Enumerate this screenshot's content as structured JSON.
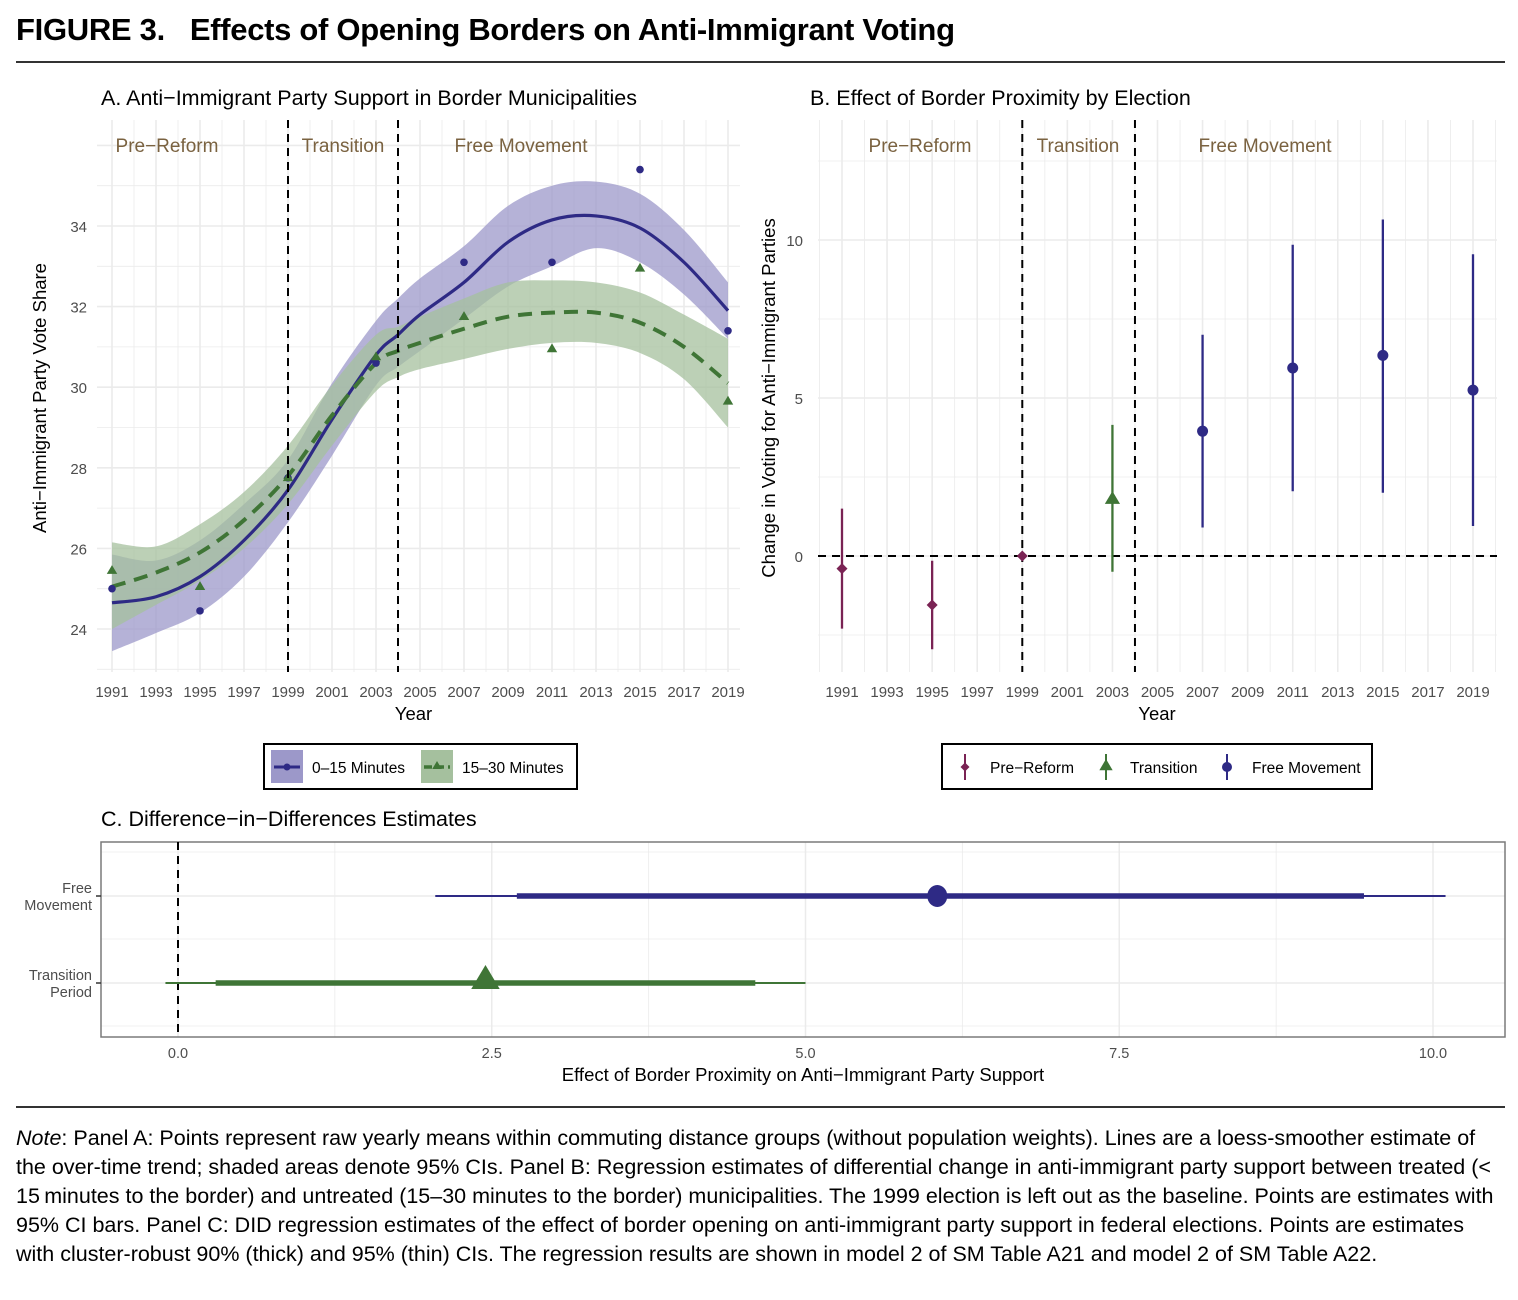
{
  "figure": {
    "label": "FIGURE 3.",
    "title": "Effects of Opening Borders on Anti-Immigrant Voting"
  },
  "colors": {
    "treated": "#2E2A85",
    "treated_band": "#9C98C9",
    "control": "#3F7536",
    "control_band": "#A5C09E",
    "pre_reform": "#7A2354",
    "period_label": "#7A6240",
    "grid": "#EBEBEB",
    "axis_text": "#4D4D4D"
  },
  "chart_data": [
    {
      "panel": "A",
      "type": "line",
      "title": "A. Anti−Immigrant Party Support in Border Municipalities",
      "xlabel": "Year",
      "ylabel": "Anti−Immigrant Party Vote Share",
      "xlim": [
        1990.5,
        2019.5
      ],
      "ylim": [
        22.9,
        36.3
      ],
      "xticks": [
        1991,
        1993,
        1995,
        1997,
        1999,
        2001,
        2003,
        2005,
        2007,
        2009,
        2011,
        2013,
        2015,
        2017,
        2019
      ],
      "yticks": [
        24,
        26,
        28,
        30,
        32,
        34
      ],
      "grid": true,
      "period_lines": [
        1999,
        2004
      ],
      "period_labels": [
        {
          "text": "Pre−Reform",
          "x": 1994.5
        },
        {
          "text": "Transition",
          "x": 2001.5
        },
        {
          "text": "Free Movement",
          "x": 2011.5
        }
      ],
      "legend": {
        "position": "bottom",
        "entries": [
          "0–15 Minutes",
          "15–30 Minutes"
        ]
      },
      "series": [
        {
          "name": "0–15 Minutes",
          "marker": "circle",
          "linestyle": "solid",
          "points": {
            "x": [
              1991,
              1995,
              1999,
              2003,
              2007,
              2011,
              2015,
              2019
            ],
            "y": [
              25.0,
              24.45,
              27.75,
              30.6,
              33.1,
              33.1,
              35.4,
              31.4
            ]
          },
          "smooth": {
            "x": [
              1991,
              1993,
              1995,
              1997,
              1999,
              2001,
              2003,
              2004,
              2005,
              2007,
              2009,
              2011,
              2013,
              2015,
              2017,
              2019
            ],
            "y": [
              24.65,
              24.8,
              25.3,
              26.2,
              27.45,
              29.2,
              30.8,
              31.3,
              31.8,
              32.6,
              33.6,
              34.15,
              34.25,
              33.95,
              33.1,
              31.9
            ],
            "lower": [
              23.45,
              23.9,
              24.4,
              25.3,
              26.65,
              28.3,
              30.05,
              30.5,
              30.9,
              31.7,
              32.5,
              33.0,
              33.45,
              33.1,
              32.3,
              31.2
            ],
            "upper": [
              25.85,
              25.7,
              26.2,
              27.1,
              28.2,
              30.1,
              31.65,
              32.2,
              32.7,
              33.5,
              34.5,
              35.0,
              35.1,
              34.8,
              33.9,
              32.6
            ]
          }
        },
        {
          "name": "15–30 Minutes",
          "marker": "triangle",
          "linestyle": "dashed",
          "points": {
            "x": [
              1991,
              1995,
              1999,
              2003,
              2007,
              2011,
              2015,
              2019
            ],
            "y": [
              25.45,
              25.05,
              27.75,
              30.75,
              31.75,
              30.95,
              32.95,
              29.65
            ]
          },
          "smooth": {
            "x": [
              1991,
              1993,
              1995,
              1997,
              1999,
              2001,
              2003,
              2004,
              2005,
              2007,
              2009,
              2011,
              2013,
              2015,
              2017,
              2019
            ],
            "y": [
              25.05,
              25.4,
              25.9,
              26.7,
              27.8,
              29.3,
              30.6,
              30.9,
              31.1,
              31.45,
              31.75,
              31.85,
              31.85,
              31.6,
              31.0,
              30.1
            ],
            "lower": [
              24.0,
              24.6,
              25.2,
              26.0,
              27.1,
              28.55,
              29.9,
              30.25,
              30.45,
              30.7,
              30.95,
              31.1,
              31.1,
              30.85,
              30.2,
              29.0
            ],
            "upper": [
              26.15,
              26.05,
              26.6,
              27.4,
              28.55,
              30.05,
              31.3,
              31.5,
              31.75,
              32.2,
              32.6,
              32.65,
              32.6,
              32.35,
              31.8,
              31.2
            ]
          }
        }
      ]
    },
    {
      "panel": "B",
      "type": "scatter",
      "title": "B. Effect of Border Proximity by Election",
      "xlabel": "Year",
      "ylabel": "Change in Voting for Anti−Immigrant Parties",
      "xlim": [
        1990.5,
        2020.3
      ],
      "ylim": [
        -3.8,
        13.8
      ],
      "xticks": [
        1991,
        1993,
        1995,
        1997,
        1999,
        2001,
        2003,
        2005,
        2007,
        2009,
        2011,
        2013,
        2015,
        2017,
        2019
      ],
      "yticks": [
        0,
        5,
        10
      ],
      "grid": true,
      "period_lines": [
        1999,
        2004
      ],
      "period_labels": [
        {
          "text": "Pre−Reform",
          "x": 1995
        },
        {
          "text": "Transition",
          "x": 2001.5
        },
        {
          "text": "Free Movement",
          "x": 2009
        }
      ],
      "reference_line": 0,
      "legend": {
        "position": "bottom",
        "entries": [
          "Pre−Reform",
          "Transition",
          "Free Movement"
        ]
      },
      "points": [
        {
          "year": 1991,
          "group": "Pre−Reform",
          "estimate": -0.4,
          "ci_low": -2.3,
          "ci_high": 1.5
        },
        {
          "year": 1995,
          "group": "Pre−Reform",
          "estimate": -1.55,
          "ci_low": -2.95,
          "ci_high": -0.15
        },
        {
          "year": 1999,
          "group": "Pre−Reform",
          "estimate": 0.0,
          "ci_low": 0.0,
          "ci_high": 0.0
        },
        {
          "year": 2003,
          "group": "Transition",
          "estimate": 1.8,
          "ci_low": -0.5,
          "ci_high": 4.15
        },
        {
          "year": 2007,
          "group": "Free Movement",
          "estimate": 3.95,
          "ci_low": 0.9,
          "ci_high": 7.0
        },
        {
          "year": 2011,
          "group": "Free Movement",
          "estimate": 5.95,
          "ci_low": 2.05,
          "ci_high": 9.85
        },
        {
          "year": 2015,
          "group": "Free Movement",
          "estimate": 6.35,
          "ci_low": 2.0,
          "ci_high": 10.65
        },
        {
          "year": 2019,
          "group": "Free Movement",
          "estimate": 5.25,
          "ci_low": 0.95,
          "ci_high": 9.55
        }
      ]
    },
    {
      "panel": "C",
      "type": "scatter",
      "title": "C. Difference−in−Differences Estimates",
      "xlabel": "Effect of Border Proximity on Anti−Immigrant Party Support",
      "ylabel": "",
      "xlim": [
        -0.6,
        10.6
      ],
      "xticks": [
        0.0,
        2.5,
        5.0,
        7.5,
        10.0
      ],
      "xtick_labels": [
        "0.0",
        "2.5",
        "5.0",
        "7.5",
        "10.0"
      ],
      "grid": true,
      "reference_line": 0,
      "categories": [
        "Free\nMovement",
        "Transition\nPeriod"
      ],
      "estimates": [
        {
          "label": "Free Movement",
          "marker": "circle",
          "estimate": 6.05,
          "ci90": [
            2.7,
            9.45
          ],
          "ci95": [
            2.05,
            10.1
          ]
        },
        {
          "label": "Transition Period",
          "marker": "triangle",
          "estimate": 2.45,
          "ci90": [
            0.3,
            4.6
          ],
          "ci95": [
            -0.1,
            5.0
          ]
        }
      ]
    }
  ],
  "note": {
    "lead": "Note",
    "text": ": Panel A: Points represent raw yearly means within commuting distance groups (without population weights). Lines are a loess-smoother estimate of the over-time trend; shaded areas denote 95% CIs. Panel B: Regression estimates of differential change in anti-immigrant party support between treated (< 15 minutes to the border) and untreated (15–30 minutes to the border) municipalities. The 1999 election is left out as the baseline. Points are estimates with 95% CI bars. Panel C: DID regression estimates of the effect of border opening on anti-immigrant party support in federal elections. Points are estimates with cluster-robust 90% (thick) and 95% (thin) CIs. The regression results are shown in model 2 of SM Table A21 and model 2 of SM Table A22."
  }
}
